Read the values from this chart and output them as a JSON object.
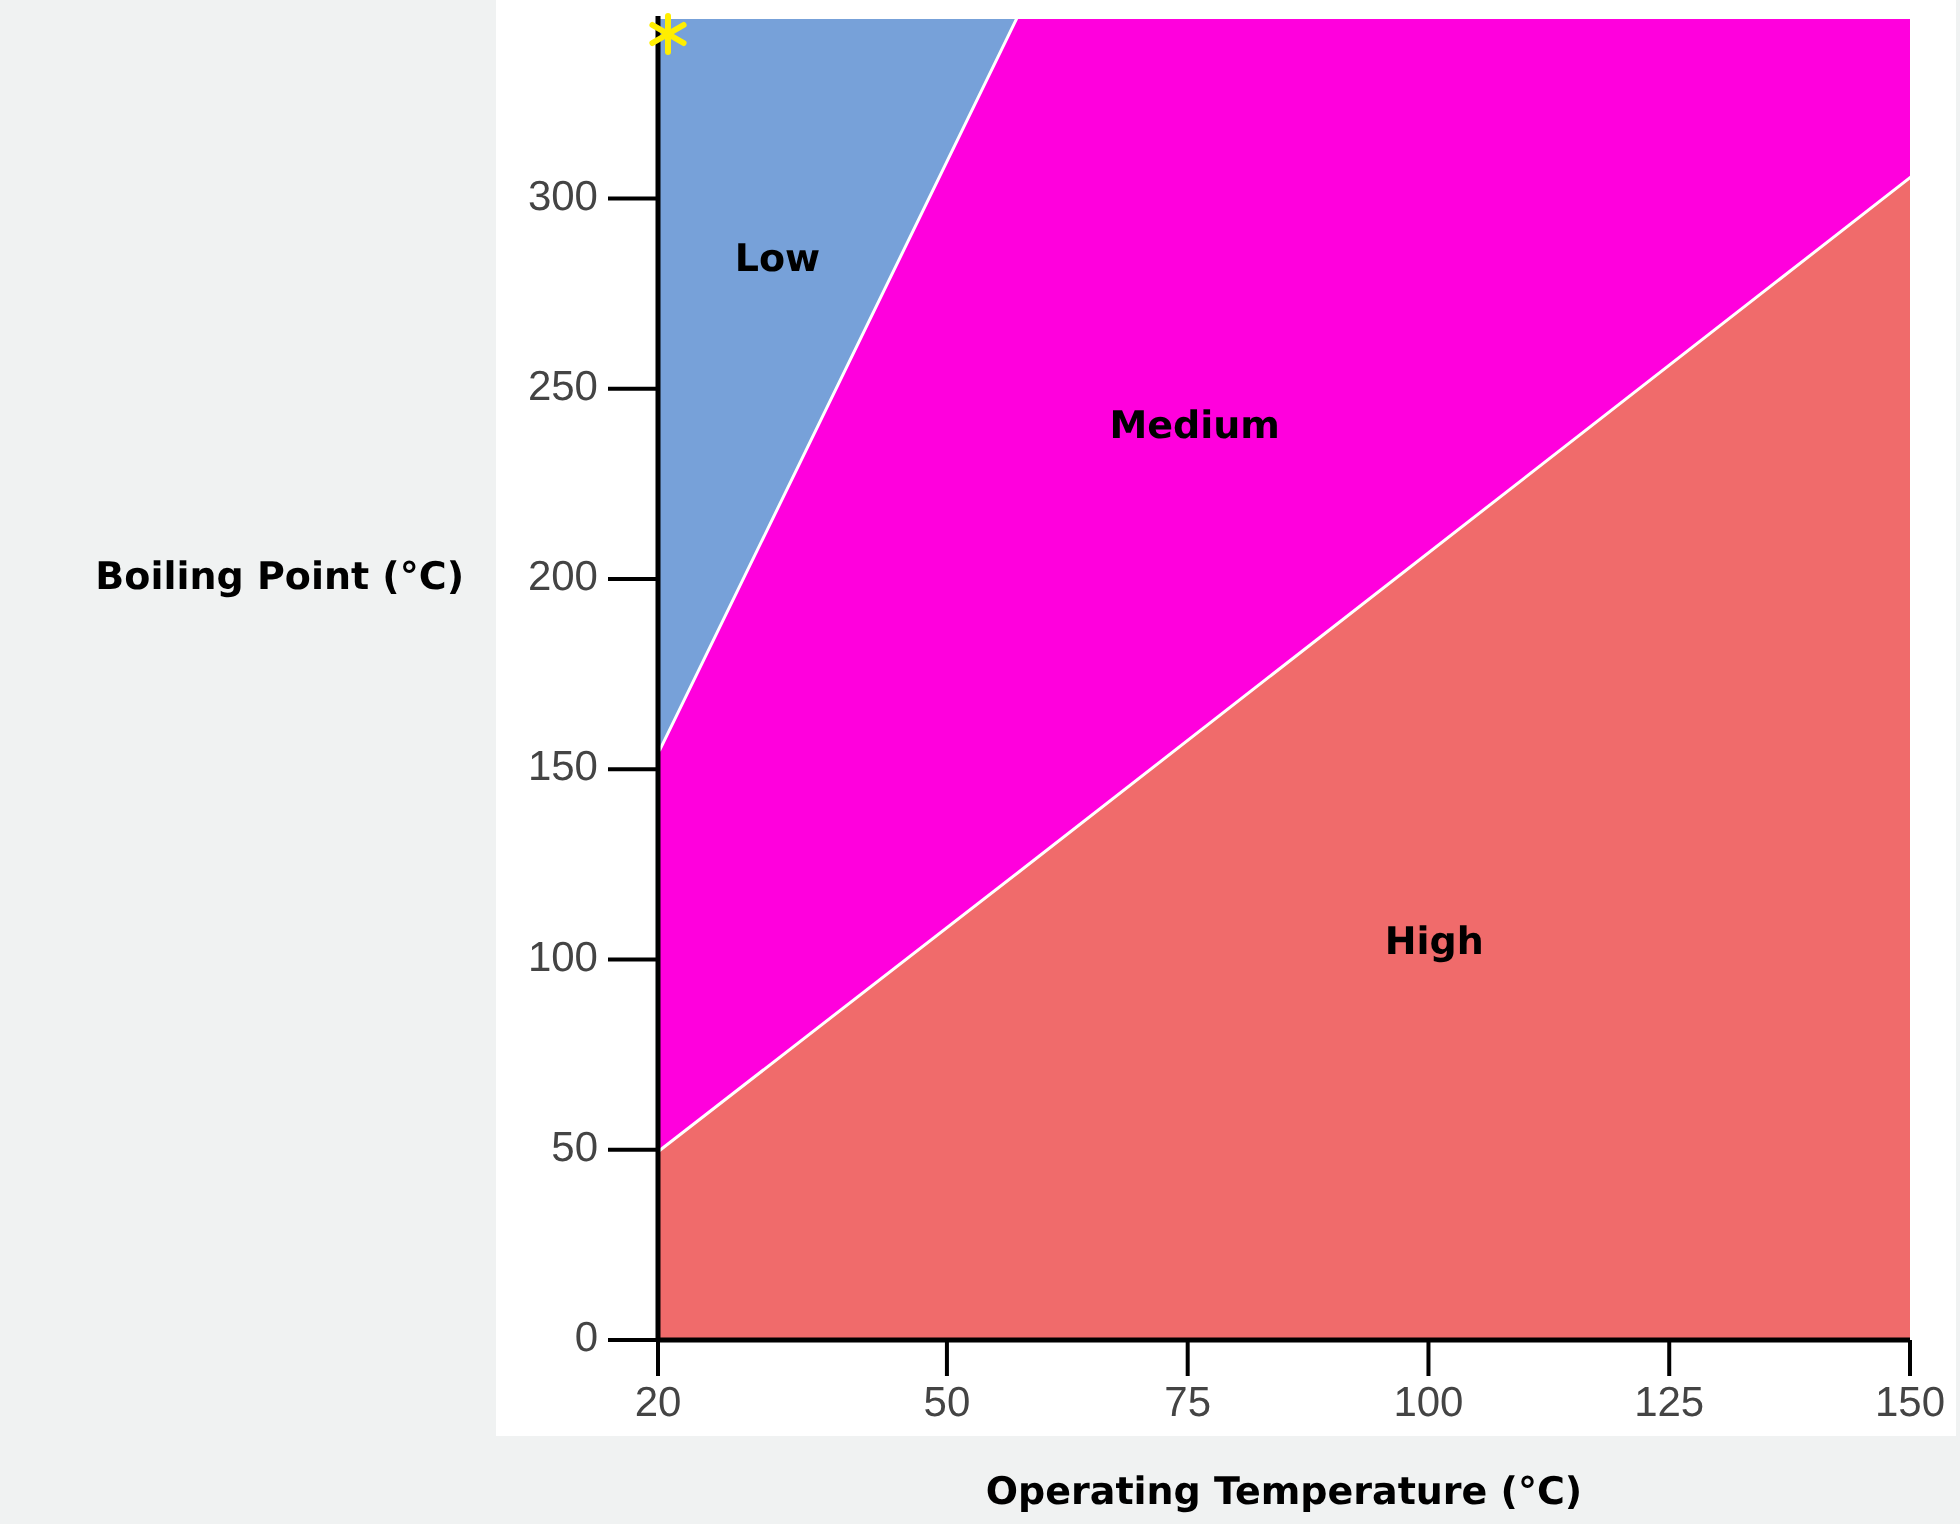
{
  "chart_data": {
    "type": "area",
    "stacked": true,
    "xlabel": "Operating Temperature (°C)",
    "ylabel": "Boiling Point (°C)",
    "x": [
      20,
      57.2,
      150
    ],
    "series": [
      {
        "name": "High",
        "color": "#f06b6b",
        "values": [
          50,
          123,
          306
        ]
      },
      {
        "name": "Medium",
        "color": "#ff00dd",
        "values": [
          105,
          225,
          42
        ]
      },
      {
        "name": "Low",
        "color": "#77a1d9",
        "values": [
          193,
          0,
          0
        ]
      }
    ],
    "xlim": [
      20,
      150
    ],
    "xticks": [
      20,
      50,
      75,
      100,
      125,
      150
    ],
    "ylim": [
      0,
      348
    ],
    "yticks": [
      0,
      50,
      100,
      150,
      200,
      250,
      300
    ]
  }
}
